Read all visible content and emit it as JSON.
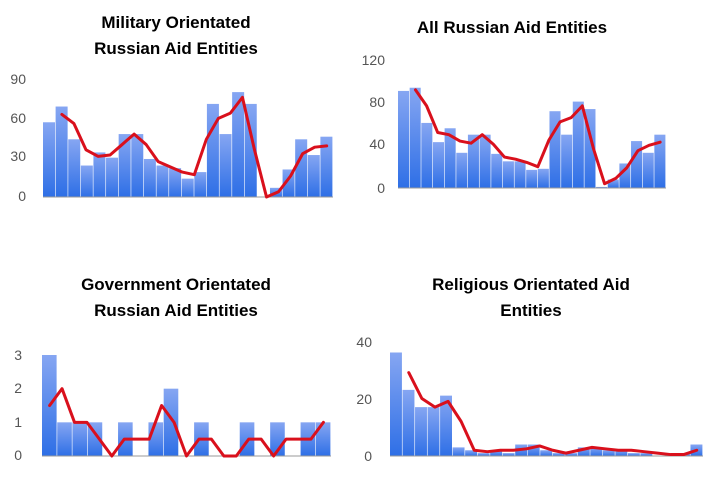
{
  "colors": {
    "bar_top": "#86a6f2",
    "bar_bottom": "#2e6fe6",
    "trend_line": "#d9101c",
    "baseline": "#9a9a9a",
    "tick_text": "#555555",
    "title_text": "#000000"
  },
  "chart_data": [
    {
      "type": "bar",
      "title_lines": [
        "Military Orientated",
        "Russian Aid Entities"
      ],
      "ylim": [
        0,
        90
      ],
      "yticks": [
        "90",
        "60",
        "30",
        "0"
      ],
      "values": [
        57,
        69,
        44,
        24,
        34,
        30,
        48,
        48,
        29,
        24,
        22,
        14,
        19,
        71,
        48,
        80,
        71,
        0,
        7,
        21,
        44,
        32,
        46
      ],
      "trend_line": {
        "type": "line",
        "x_start_index": 1,
        "values": [
          63,
          56,
          36,
          31,
          32,
          40,
          48,
          40,
          27,
          23,
          19,
          17,
          44,
          60,
          64,
          76,
          36,
          0,
          4,
          16,
          33,
          38,
          39
        ]
      }
    },
    {
      "type": "bar",
      "title_lines": [
        "All Russian Aid Entities"
      ],
      "ylim": [
        0,
        120
      ],
      "yticks": [
        "120",
        "80",
        "40",
        "0"
      ],
      "values": [
        91,
        94,
        61,
        43,
        56,
        33,
        50,
        50,
        32,
        25,
        25,
        17,
        18,
        72,
        50,
        81,
        74,
        1,
        8,
        23,
        44,
        33,
        50
      ],
      "trend_line": {
        "type": "line",
        "x_start_index": 1,
        "values": [
          92,
          77,
          52,
          50,
          44,
          42,
          50,
          41,
          29,
          27,
          24,
          20,
          45,
          62,
          66,
          77,
          37,
          4,
          9,
          19,
          35,
          40,
          43
        ]
      }
    },
    {
      "type": "bar",
      "title_lines": [
        "Government Orientated",
        "Russian Aid Entities"
      ],
      "ylim": [
        0,
        3
      ],
      "yticks": [
        "3",
        "2",
        "1",
        "0"
      ],
      "values": [
        3,
        1,
        1,
        1,
        0,
        1,
        0,
        1,
        2,
        0,
        1,
        0,
        0,
        1,
        0,
        1,
        0,
        1,
        1
      ],
      "trend_line": {
        "type": "line",
        "x_start_index": 0,
        "values": [
          1.5,
          2,
          1,
          1,
          0.5,
          0,
          0.5,
          0.5,
          0.5,
          1.5,
          1,
          0,
          0.5,
          0.5,
          0,
          0,
          0.5,
          0.5,
          0,
          0.5,
          0.5,
          0.5,
          1
        ]
      }
    },
    {
      "type": "bar",
      "title_lines": [
        "Religious Orientated Aid",
        "Entities"
      ],
      "ylim": [
        0,
        40
      ],
      "yticks": [
        "40",
        "20",
        "0"
      ],
      "values": [
        36,
        23,
        17,
        17,
        21,
        3,
        2,
        1,
        2,
        1,
        4,
        4,
        2,
        1,
        1,
        3,
        3,
        2,
        2,
        1,
        1,
        0,
        0,
        1,
        4
      ],
      "trend_line": {
        "type": "line",
        "x_start_index": 1,
        "values": [
          29,
          20,
          17,
          19,
          12,
          2,
          1.5,
          2,
          2,
          2.5,
          3.5,
          2,
          1,
          2,
          3,
          2.5,
          2,
          2,
          1.5,
          1,
          0.5,
          0.5,
          2
        ]
      }
    }
  ]
}
